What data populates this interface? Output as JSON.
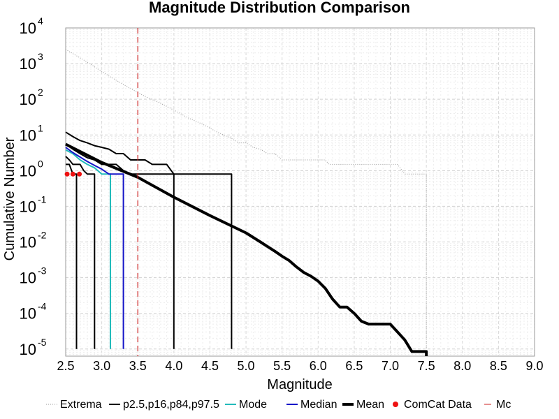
{
  "chart_data": {
    "type": "line",
    "title": "Magnitude Distribution Comparison",
    "xlabel": "Magnitude",
    "ylabel": "Cumulative Number",
    "xlim": [
      2.5,
      9.0
    ],
    "ylim_log10": [
      -5.2,
      4
    ],
    "y_scale": "log",
    "grid": true,
    "legend_placement": "bottom",
    "x_ticks": [
      "2.5",
      "3.0",
      "3.5",
      "4.0",
      "4.5",
      "5.0",
      "5.5",
      "6.0",
      "6.5",
      "7.0",
      "7.5",
      "8.0",
      "8.5",
      "9.0"
    ],
    "y_ticks": [
      {
        "base": "10",
        "exp": "4",
        "log": 4
      },
      {
        "base": "10",
        "exp": "3",
        "log": 3
      },
      {
        "base": "10",
        "exp": "2",
        "log": 2
      },
      {
        "base": "10",
        "exp": "1",
        "log": 1
      },
      {
        "base": "10",
        "exp": "0",
        "log": 0
      },
      {
        "base": "10",
        "exp": "-1",
        "log": -1
      },
      {
        "base": "10",
        "exp": "-2",
        "log": -2
      },
      {
        "base": "10",
        "exp": "-3",
        "log": -3
      },
      {
        "base": "10",
        "exp": "-4",
        "log": -4
      },
      {
        "base": "10",
        "exp": "-5",
        "log": -5
      }
    ],
    "series": [
      {
        "name": "Extrema",
        "style": "dotted",
        "color": "#999999",
        "x": [
          2.5,
          2.8,
          3.1,
          3.4,
          3.6,
          3.8,
          4.0,
          4.2,
          4.4,
          4.6,
          4.8,
          4.9,
          5.0,
          5.1,
          5.2,
          5.3,
          5.4,
          5.5,
          5.7,
          6.0,
          6.1,
          6.15,
          6.5,
          7.0,
          7.1,
          7.2,
          7.3,
          7.45,
          7.5,
          7.5
        ],
        "y": [
          2500,
          1100,
          450,
          200,
          120,
          80,
          50,
          30,
          20,
          12,
          8,
          6,
          6,
          4.5,
          4,
          3,
          3,
          2,
          2,
          2,
          2,
          1.5,
          1.5,
          1.5,
          1.5,
          0.8,
          0.8,
          0.8,
          0.8,
          1e-05
        ]
      },
      {
        "name": "p2.5,p16,p84,p97.5",
        "style": "solid",
        "color": "#000000",
        "width": 2,
        "x": [
          2.5,
          2.6,
          2.7,
          2.8,
          2.9,
          3.0,
          3.1,
          3.2,
          3.3,
          3.4,
          3.5,
          3.6,
          3.7,
          3.9,
          4.0,
          4.1,
          4.8,
          4.8
        ],
        "y": [
          12,
          9,
          7,
          6,
          5,
          4.5,
          4,
          3,
          3,
          2,
          2,
          2,
          1.5,
          1.5,
          0.8,
          0.8,
          0.8,
          1e-05
        ]
      },
      {
        "name": "p2.5,p16,p84,p97.5",
        "style": "solid",
        "color": "#000000",
        "width": 2,
        "x": [
          2.5,
          2.6,
          2.7,
          2.8,
          2.9,
          3.0,
          3.1,
          3.2,
          3.3,
          3.4,
          3.5,
          3.9,
          4.0,
          4.0
        ],
        "y": [
          5.5,
          4,
          3,
          2.3,
          2,
          1.5,
          1.5,
          1.5,
          1,
          0.8,
          0.8,
          0.8,
          0.8,
          1e-05
        ]
      },
      {
        "name": "p2.5,p16,p84,p97.5",
        "style": "solid",
        "color": "#000000",
        "width": 2,
        "x": [
          2.5,
          2.55,
          2.6,
          2.7,
          2.75,
          2.8,
          2.9,
          2.9
        ],
        "y": [
          2.5,
          2,
          1.5,
          1.5,
          1,
          0.8,
          0.8,
          1e-05
        ]
      },
      {
        "name": "p2.5,p16,p84,p97.5",
        "style": "solid",
        "color": "#000000",
        "width": 2,
        "x": [
          2.5,
          2.55,
          2.6,
          2.65,
          2.65
        ],
        "y": [
          1.5,
          1.5,
          0.8,
          0.8,
          1e-05
        ]
      },
      {
        "name": "Mode",
        "style": "solid",
        "color": "#22bbbb",
        "width": 2,
        "x": [
          2.5,
          2.6,
          2.7,
          2.8,
          2.9,
          3.0,
          3.1,
          3.12,
          3.12
        ],
        "y": [
          3.8,
          3,
          2,
          1.5,
          1.2,
          0.8,
          0.8,
          0.8,
          1e-05
        ]
      },
      {
        "name": "Median",
        "style": "solid",
        "color": "#1515c8",
        "width": 2,
        "x": [
          2.5,
          2.6,
          2.7,
          2.8,
          2.9,
          3.0,
          3.1,
          3.2,
          3.3,
          3.3
        ],
        "y": [
          4.5,
          3.2,
          2.4,
          1.8,
          1.4,
          1.1,
          0.8,
          0.8,
          0.8,
          1e-05
        ]
      },
      {
        "name": "Mean",
        "style": "solid",
        "color": "#000000",
        "width": 4,
        "x": [
          2.5,
          3.0,
          3.5,
          4.0,
          4.5,
          5.0,
          5.2,
          5.4,
          5.5,
          5.6,
          5.7,
          5.8,
          5.9,
          6.0,
          6.1,
          6.2,
          6.3,
          6.4,
          6.5,
          6.6,
          6.7,
          6.8,
          6.9,
          7.0,
          7.1,
          7.2,
          7.3,
          7.4,
          7.5,
          7.5
        ],
        "y": [
          5.5,
          1.7,
          0.65,
          0.18,
          0.055,
          0.018,
          0.01,
          0.0055,
          0.004,
          0.003,
          0.002,
          0.0014,
          0.0011,
          0.0008,
          0.0005,
          0.00025,
          0.00015,
          0.00015,
          0.0001,
          6e-05,
          5e-05,
          5e-05,
          5e-05,
          5e-05,
          3e-05,
          1.8e-05,
          8.5e-06,
          8.5e-06,
          8.5e-06,
          1e-06
        ]
      }
    ],
    "comcat_data": {
      "name": "ComCat Data",
      "color": "#ee1111",
      "x": [
        2.52,
        2.6,
        2.69
      ],
      "y": [
        0.8,
        0.8,
        0.8
      ]
    },
    "mc": {
      "name": "Mc",
      "color": "#cc2222",
      "x": 3.5
    },
    "legend": [
      {
        "label": "Extrema",
        "style": "dotted",
        "color": "#999999",
        "width": 1
      },
      {
        "label": "p2.5,p16,p84,p97.5",
        "style": "solid",
        "color": "#000000",
        "width": 2
      },
      {
        "label": "Mode",
        "style": "solid",
        "color": "#22bbbb",
        "width": 2
      },
      {
        "label": "Median",
        "style": "solid",
        "color": "#1515c8",
        "width": 2
      },
      {
        "label": "Mean",
        "style": "solid",
        "color": "#000000",
        "width": 4
      },
      {
        "label": "ComCat Data",
        "style": "dot",
        "color": "#ee1111",
        "width": 1
      },
      {
        "label": "Mc",
        "style": "dashed",
        "color": "#cc2222",
        "width": 1
      }
    ]
  }
}
